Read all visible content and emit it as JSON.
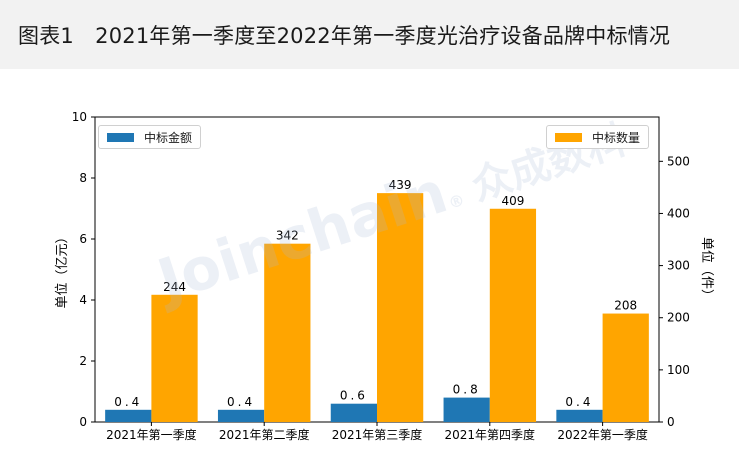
{
  "header": {
    "title": "图表1　2021年第一季度至2022年第一季度光治疗设备品牌中标情况"
  },
  "watermark": {
    "brand": "Joinchain",
    "reg": "®",
    "cn": "众成数科"
  },
  "chart_data": {
    "type": "bar",
    "categories": [
      "2021年第一季度",
      "2021年第二季度",
      "2021年第三季度",
      "2021年第四季度",
      "2022年第一季度"
    ],
    "series": [
      {
        "name": "中标金额",
        "axis": "left",
        "color": "#1f77b4",
        "values": [
          0.4,
          0.4,
          0.6,
          0.8,
          0.4
        ],
        "labels": [
          "0.4",
          "0.4",
          "0.6",
          "0.8",
          "0.4"
        ]
      },
      {
        "name": "中标数量",
        "axis": "right",
        "color": "#ffa500",
        "values": [
          244,
          342,
          439,
          409,
          208
        ],
        "labels": [
          "244",
          "342",
          "439",
          "409",
          "208"
        ]
      }
    ],
    "ylabel_left": "单位（亿元）",
    "ylabel_right": "单位（件）",
    "ylim_left": [
      0,
      10
    ],
    "ylim_right": [
      0,
      585
    ],
    "yticks_left": [
      "0",
      "2",
      "4",
      "6",
      "8",
      "10"
    ],
    "yticks_right": [
      "0",
      "100",
      "200",
      "300",
      "400",
      "500"
    ],
    "legend_left": "top-left",
    "legend_right": "top-right",
    "grid": false
  }
}
